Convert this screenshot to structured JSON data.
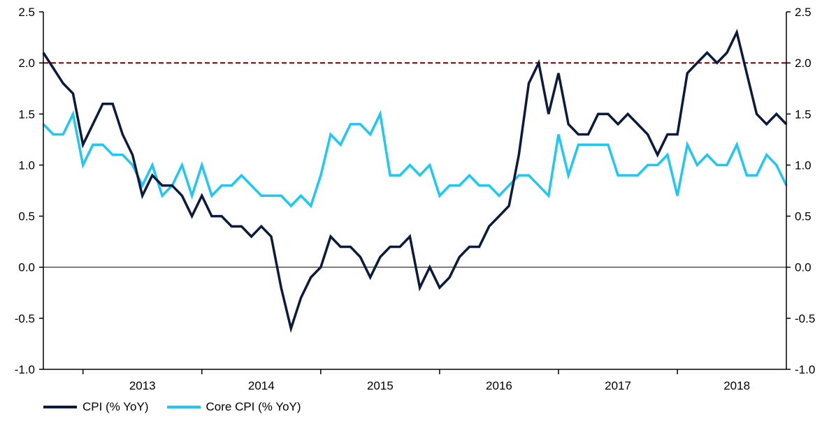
{
  "colors": {
    "cpi": "#0b1a3d",
    "core": "#1ec8f2",
    "reference_line": "#8b0000",
    "axis": "#000000"
  },
  "chart_data": {
    "type": "line",
    "title": "",
    "xlabel": "",
    "ylabel": "",
    "ylim": [
      -1.0,
      2.5
    ],
    "yticks": [
      "-1.0",
      "-0.5",
      "0.0",
      "0.5",
      "1.0",
      "1.5",
      "2.0",
      "2.5"
    ],
    "secondary_yticks": [
      "-1.0",
      "-0.5",
      "0.0",
      "0.5",
      "1.0",
      "1.5",
      "2.0",
      "2.5"
    ],
    "x_start": "2012-09",
    "x_end": "2018-12",
    "xticks": [
      "2013",
      "2014",
      "2015",
      "2016",
      "2017",
      "2018"
    ],
    "grid": false,
    "legend": "bottom-left",
    "reference_lines": [
      {
        "y": 2.0,
        "style": "dashed"
      },
      {
        "y": 0.0,
        "style": "solid"
      }
    ],
    "series": [
      {
        "name": "CPI (% YoY)",
        "values": [
          2.1,
          1.95,
          1.8,
          1.7,
          1.2,
          1.4,
          1.6,
          1.6,
          1.3,
          1.1,
          0.7,
          0.9,
          0.8,
          0.8,
          0.7,
          0.5,
          0.7,
          0.5,
          0.5,
          0.4,
          0.4,
          0.3,
          0.4,
          0.3,
          -0.2,
          -0.6,
          -0.3,
          -0.1,
          0.0,
          0.3,
          0.2,
          0.2,
          0.1,
          -0.1,
          0.1,
          0.2,
          0.2,
          0.3,
          -0.2,
          0.0,
          -0.2,
          -0.1,
          0.1,
          0.2,
          0.2,
          0.4,
          0.5,
          0.6,
          1.1,
          1.8,
          2.0,
          1.5,
          1.9,
          1.4,
          1.3,
          1.3,
          1.5,
          1.5,
          1.4,
          1.5,
          1.4,
          1.3,
          1.1,
          1.3,
          1.3,
          1.9,
          2.0,
          2.1,
          2.0,
          2.1,
          2.3,
          1.9,
          1.5,
          1.4,
          1.5,
          1.4
        ]
      },
      {
        "name": "Core CPI (% YoY)",
        "values": [
          1.4,
          1.3,
          1.3,
          1.5,
          1.0,
          1.2,
          1.2,
          1.1,
          1.1,
          1.0,
          0.8,
          1.0,
          0.7,
          0.8,
          1.0,
          0.7,
          1.0,
          0.7,
          0.8,
          0.8,
          0.9,
          0.8,
          0.7,
          0.7,
          0.7,
          0.6,
          0.7,
          0.6,
          0.9,
          1.3,
          1.2,
          1.4,
          1.4,
          1.3,
          1.5,
          0.9,
          0.9,
          1.0,
          0.9,
          1.0,
          0.7,
          0.8,
          0.8,
          0.9,
          0.8,
          0.8,
          0.7,
          0.8,
          0.9,
          0.9,
          0.8,
          0.7,
          1.3,
          0.9,
          1.2,
          1.2,
          1.2,
          1.2,
          0.9,
          0.9,
          0.9,
          1.0,
          1.0,
          1.1,
          0.7,
          1.2,
          1.0,
          1.1,
          1.0,
          1.0,
          1.2,
          0.9,
          0.9,
          1.1,
          1.0,
          0.8
        ]
      }
    ]
  },
  "legend": {
    "cpi_label": "CPI (% YoY)",
    "core_label": "Core CPI (% YoY)"
  }
}
